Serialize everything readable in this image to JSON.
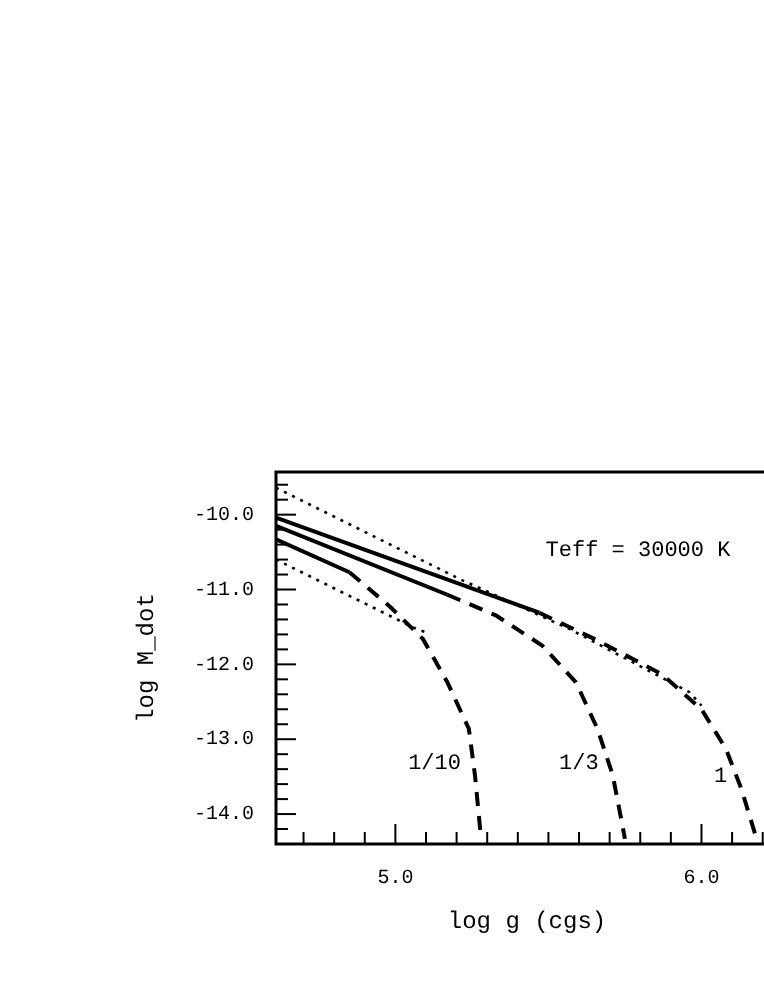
{
  "chart_data": {
    "type": "line",
    "xlabel": "log g (cgs)",
    "ylabel": "log M_dot",
    "xlim": [
      4.61,
      6.25
    ],
    "ylim": [
      -14.4,
      -9.43
    ],
    "xticks": [
      {
        "value": 4.7,
        "label": null
      },
      {
        "value": 4.8,
        "label": null
      },
      {
        "value": 4.9,
        "label": null
      },
      {
        "value": 5,
        "label": "5.0"
      },
      {
        "value": 5.1,
        "label": null
      },
      {
        "value": 5.2,
        "label": null
      },
      {
        "value": 5.3,
        "label": null
      },
      {
        "value": 5.4,
        "label": null
      },
      {
        "value": 5.5,
        "label": null
      },
      {
        "value": 5.6,
        "label": null
      },
      {
        "value": 5.7,
        "label": null
      },
      {
        "value": 5.8,
        "label": null
      },
      {
        "value": 5.9,
        "label": null
      },
      {
        "value": 6,
        "label": "6.0"
      },
      {
        "value": 6.1,
        "label": null
      },
      {
        "value": 6.2,
        "label": null
      }
    ],
    "yticks": [
      {
        "value": -14.2,
        "label": null
      },
      {
        "value": -14,
        "label": "-14.0"
      },
      {
        "value": -13.8,
        "label": null
      },
      {
        "value": -13.6,
        "label": null
      },
      {
        "value": -13.4,
        "label": null
      },
      {
        "value": -13.2,
        "label": null
      },
      {
        "value": -13,
        "label": "-13.0"
      },
      {
        "value": -12.8,
        "label": null
      },
      {
        "value": -12.6,
        "label": null
      },
      {
        "value": -12.4,
        "label": null
      },
      {
        "value": -12.2,
        "label": null
      },
      {
        "value": -12,
        "label": "-12.0"
      },
      {
        "value": -11.8,
        "label": null
      },
      {
        "value": -11.6,
        "label": null
      },
      {
        "value": -11.4,
        "label": null
      },
      {
        "value": -11.2,
        "label": null
      },
      {
        "value": -11,
        "label": "-11.0"
      },
      {
        "value": -10.8,
        "label": null
      },
      {
        "value": -10.6,
        "label": null
      },
      {
        "value": -10.4,
        "label": null
      },
      {
        "value": -10.2,
        "label": null
      },
      {
        "value": -10,
        "label": "-10.0"
      },
      {
        "value": -9.8,
        "label": null
      },
      {
        "value": -9.6,
        "label": null
      }
    ],
    "legend": false,
    "series": [
      {
        "color": "#000000",
        "line_style": "solid",
        "x": [
          4.61,
          5.47
        ],
        "values": [
          -10.04,
          -11.31
        ]
      },
      {
        "color": "#000000",
        "line_style": "dashed",
        "x": [
          5.47,
          5.65,
          5.87,
          6.0,
          6.08,
          6.13,
          6.18
        ],
        "values": [
          -11.31,
          -11.66,
          -12.13,
          -12.6,
          -13.13,
          -13.66,
          -14.33
        ]
      },
      {
        "color": "#000000",
        "line_style": "solid",
        "x": [
          4.61,
          5.17
        ],
        "values": [
          -10.15,
          -11.07
        ]
      },
      {
        "color": "#000000",
        "line_style": "dashed",
        "x": [
          5.17,
          5.33,
          5.48,
          5.59,
          5.66,
          5.71,
          5.75
        ],
        "values": [
          -11.07,
          -11.35,
          -11.75,
          -12.24,
          -12.86,
          -13.48,
          -14.33
        ]
      },
      {
        "color": "#000000",
        "line_style": "solid",
        "x": [
          4.61,
          4.85
        ],
        "values": [
          -10.33,
          -10.77
        ]
      },
      {
        "color": "#000000",
        "line_style": "dashed",
        "x": [
          4.85,
          4.98,
          5.09,
          5.17,
          5.24,
          5.26,
          5.28
        ],
        "values": [
          -10.77,
          -11.22,
          -11.66,
          -12.24,
          -12.86,
          -13.48,
          -14.33
        ]
      },
      {
        "color": "#000000",
        "line_style": "dotted",
        "x": [
          4.61,
          5.21,
          5.57,
          5.96,
          6.0
        ],
        "values": [
          -9.64,
          -10.86,
          -11.53,
          -12.37,
          -12.55
        ]
      },
      {
        "color": "#000000",
        "line_style": "dotted",
        "x": [
          4.61,
          5.07,
          5.1
        ],
        "values": [
          -10.6,
          -11.53,
          -11.57
        ]
      }
    ],
    "annotations": [
      "Teff = 30000 K",
      {
        "text": "1/10",
        "x": 5.26,
        "y": -13.48
      },
      {
        "text": "1/3",
        "x": 5.71,
        "y": -13.48
      },
      {
        "text": "1",
        "x": 6.13,
        "y": -13.66
      }
    ]
  }
}
